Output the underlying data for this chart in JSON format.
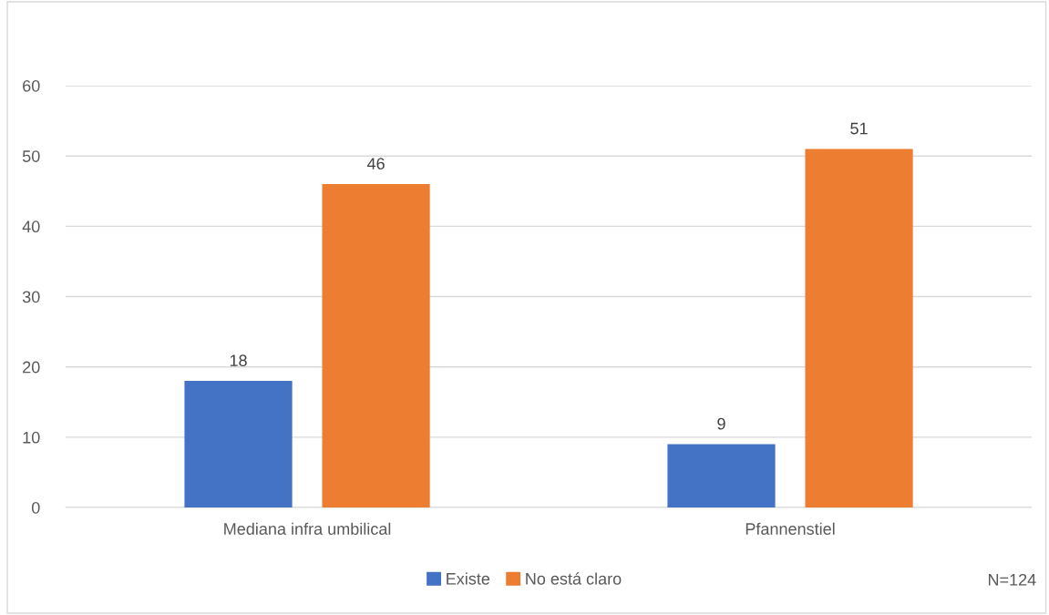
{
  "chart_data": {
    "type": "bar",
    "categories": [
      "Mediana infra umbilical",
      "Pfannenstiel"
    ],
    "series": [
      {
        "name": "Existe",
        "color": "#4472c4",
        "values": [
          18,
          9
        ]
      },
      {
        "name": "No está claro",
        "color": "#ed7d31",
        "values": [
          46,
          51
        ]
      }
    ],
    "ylim": [
      0,
      60
    ],
    "yticks": [
      0,
      10,
      20,
      30,
      40,
      50,
      60
    ],
    "grid": "y",
    "legend": "bottom",
    "data_labels": true,
    "annotations": [
      "N=124"
    ]
  }
}
